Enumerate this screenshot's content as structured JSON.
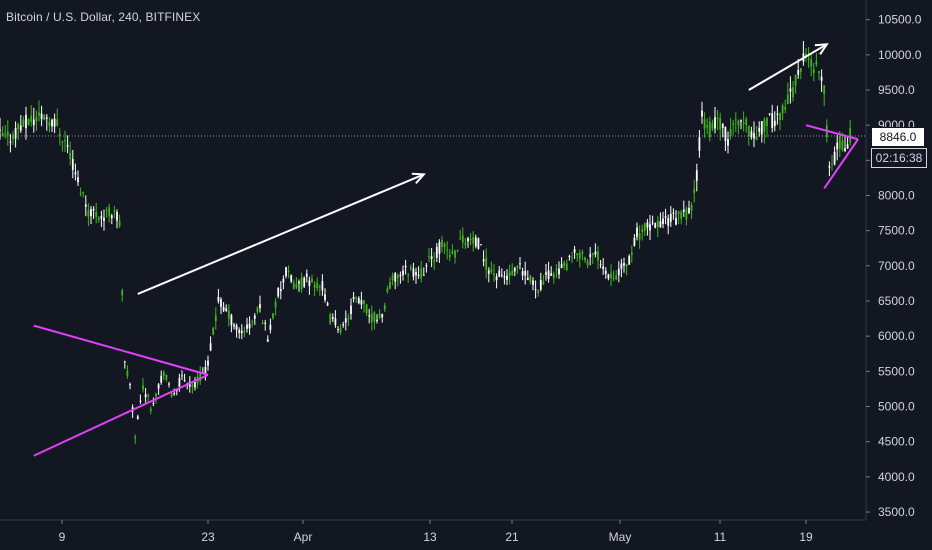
{
  "header": {
    "title": "Bitcoin / U.S. Dollar, 240, BITFINEX"
  },
  "last_price_label": "8846.0",
  "countdown_label": "02:16:38",
  "colors": {
    "background": "#131722",
    "up_candle": "#26a69a",
    "up_candle_display": "#3fb618",
    "down_candle": "#ffffff",
    "drawing_lines": "#e040fb",
    "arrows": "#ffffff",
    "axis_text": "#d1d4dc",
    "current_price_line": "#9598a1"
  },
  "chart_data": {
    "type": "candlestick",
    "title": "Bitcoin / U.S. Dollar, 240, BITFINEX",
    "ylim": [
      3350,
      10850
    ],
    "y_ticks": [
      "3500.0",
      "4000.0",
      "4500.0",
      "5000.0",
      "5500.0",
      "6000.0",
      "6500.0",
      "7000.0",
      "7500.0",
      "8000.0",
      "8500.0",
      "9000.0",
      "9500.0",
      "10000.0",
      "10500.0"
    ],
    "x_ticks": [
      "9",
      "23",
      "Apr",
      "13",
      "21",
      "May",
      "11",
      "19"
    ],
    "current_price": 8846.0,
    "current_price_label": "8846.0",
    "countdown": "02:16:38",
    "anchors": [
      {
        "t": 0,
        "p": 8850
      },
      {
        "t": 3,
        "p": 8800
      },
      {
        "t": 8,
        "p": 9000
      },
      {
        "t": 17,
        "p": 9150
      },
      {
        "t": 22,
        "p": 9000
      },
      {
        "t": 26,
        "p": 8700
      },
      {
        "t": 30,
        "p": 8200
      },
      {
        "t": 34,
        "p": 7800
      },
      {
        "t": 40,
        "p": 7700
      },
      {
        "t": 44,
        "p": 7800
      },
      {
        "t": 46,
        "p": 7600
      },
      {
        "t": 48,
        "p": 5600
      },
      {
        "t": 50,
        "p": 5300
      },
      {
        "t": 52,
        "p": 4600
      },
      {
        "t": 55,
        "p": 5300
      },
      {
        "t": 58,
        "p": 5000
      },
      {
        "t": 63,
        "p": 5500
      },
      {
        "t": 66,
        "p": 5150
      },
      {
        "t": 70,
        "p": 5400
      },
      {
        "t": 75,
        "p": 5300
      },
      {
        "t": 80,
        "p": 5600
      },
      {
        "t": 84,
        "p": 6500
      },
      {
        "t": 88,
        "p": 6300
      },
      {
        "t": 92,
        "p": 6050
      },
      {
        "t": 96,
        "p": 6150
      },
      {
        "t": 100,
        "p": 6400
      },
      {
        "t": 103,
        "p": 6000
      },
      {
        "t": 107,
        "p": 6600
      },
      {
        "t": 110,
        "p": 6900
      },
      {
        "t": 114,
        "p": 6700
      },
      {
        "t": 118,
        "p": 6800
      },
      {
        "t": 124,
        "p": 6700
      },
      {
        "t": 127,
        "p": 6250
      },
      {
        "t": 132,
        "p": 6100
      },
      {
        "t": 136,
        "p": 6500
      },
      {
        "t": 140,
        "p": 6450
      },
      {
        "t": 143,
        "p": 6250
      },
      {
        "t": 147,
        "p": 6300
      },
      {
        "t": 150,
        "p": 6750
      },
      {
        "t": 154,
        "p": 6900
      },
      {
        "t": 158,
        "p": 6950
      },
      {
        "t": 162,
        "p": 6900
      },
      {
        "t": 165,
        "p": 7050
      },
      {
        "t": 170,
        "p": 7300
      },
      {
        "t": 174,
        "p": 7150
      },
      {
        "t": 178,
        "p": 7400
      },
      {
        "t": 184,
        "p": 7300
      },
      {
        "t": 188,
        "p": 6950
      },
      {
        "t": 192,
        "p": 6850
      },
      {
        "t": 196,
        "p": 6850
      },
      {
        "t": 200,
        "p": 6950
      },
      {
        "t": 203,
        "p": 6800
      },
      {
        "t": 207,
        "p": 6700
      },
      {
        "t": 212,
        "p": 6900
      },
      {
        "t": 218,
        "p": 7000
      },
      {
        "t": 222,
        "p": 7200
      },
      {
        "t": 226,
        "p": 7100
      },
      {
        "t": 230,
        "p": 7150
      },
      {
        "t": 234,
        "p": 6900
      },
      {
        "t": 238,
        "p": 6900
      },
      {
        "t": 242,
        "p": 7100
      },
      {
        "t": 245,
        "p": 7450
      },
      {
        "t": 250,
        "p": 7550
      },
      {
        "t": 256,
        "p": 7650
      },
      {
        "t": 262,
        "p": 7700
      },
      {
        "t": 266,
        "p": 7800
      },
      {
        "t": 268,
        "p": 8300
      },
      {
        "t": 270,
        "p": 9200
      },
      {
        "t": 272,
        "p": 8900
      },
      {
        "t": 276,
        "p": 9050
      },
      {
        "t": 280,
        "p": 8800
      },
      {
        "t": 284,
        "p": 9100
      },
      {
        "t": 290,
        "p": 8850
      },
      {
        "t": 294,
        "p": 9000
      },
      {
        "t": 298,
        "p": 9100
      },
      {
        "t": 302,
        "p": 9250
      },
      {
        "t": 306,
        "p": 9600
      },
      {
        "t": 309,
        "p": 9950
      },
      {
        "t": 312,
        "p": 9900
      },
      {
        "t": 315,
        "p": 9750
      },
      {
        "t": 317,
        "p": 9450
      },
      {
        "t": 319,
        "p": 8400
      },
      {
        "t": 321,
        "p": 8550
      },
      {
        "t": 323,
        "p": 8750
      },
      {
        "t": 325,
        "p": 8650
      },
      {
        "t": 327,
        "p": 8846
      }
    ],
    "drawings": {
      "triangle_1": {
        "upper": [
          [
            13,
            6150
          ],
          [
            80,
            5450
          ]
        ],
        "lower": [
          [
            13,
            4300
          ],
          [
            80,
            5450
          ]
        ]
      },
      "triangle_2": {
        "upper": [
          [
            310,
            9000
          ],
          [
            330,
            8800
          ]
        ],
        "lower": [
          [
            317,
            8100
          ],
          [
            330,
            8800
          ]
        ]
      },
      "arrow_1": {
        "from": [
          53,
          6600
        ],
        "to": [
          163,
          8300
        ]
      },
      "arrow_2": {
        "from": [
          288,
          9500
        ],
        "to": [
          318,
          10150
        ]
      }
    }
  }
}
